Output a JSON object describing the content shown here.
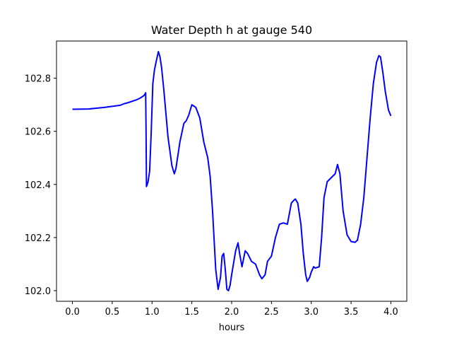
{
  "chart_data": {
    "type": "line",
    "title": "Water Depth h at gauge 540",
    "xlabel": "hours",
    "ylabel": "",
    "xlim": [
      -0.2,
      4.2
    ],
    "ylim": [
      101.96,
      102.94
    ],
    "grid": false,
    "legend": "none",
    "x_ticks": [
      0.0,
      0.5,
      1.0,
      1.5,
      2.0,
      2.5,
      3.0,
      3.5,
      4.0
    ],
    "x_tick_labels": [
      "0.0",
      "0.5",
      "1.0",
      "1.5",
      "2.0",
      "2.5",
      "3.0",
      "3.5",
      "4.0"
    ],
    "y_ticks": [
      102.0,
      102.2,
      102.4,
      102.6,
      102.8
    ],
    "y_tick_labels": [
      "102.0",
      "102.2",
      "102.4",
      "102.6",
      "102.8"
    ],
    "series": [
      {
        "color": "#0000ff",
        "points": [
          [
            0.0,
            102.683
          ],
          [
            0.2,
            102.684
          ],
          [
            0.4,
            102.69
          ],
          [
            0.6,
            102.698
          ],
          [
            0.65,
            102.704
          ],
          [
            0.7,
            102.708
          ],
          [
            0.8,
            102.718
          ],
          [
            0.85,
            102.725
          ],
          [
            0.9,
            102.735
          ],
          [
            0.92,
            102.745
          ],
          [
            0.925,
            102.6
          ],
          [
            0.93,
            102.392
          ],
          [
            0.95,
            102.41
          ],
          [
            0.97,
            102.45
          ],
          [
            0.99,
            102.6
          ],
          [
            1.01,
            102.78
          ],
          [
            1.03,
            102.83
          ],
          [
            1.05,
            102.86
          ],
          [
            1.08,
            102.9
          ],
          [
            1.1,
            102.88
          ],
          [
            1.12,
            102.84
          ],
          [
            1.15,
            102.75
          ],
          [
            1.2,
            102.58
          ],
          [
            1.25,
            102.47
          ],
          [
            1.28,
            102.44
          ],
          [
            1.3,
            102.46
          ],
          [
            1.35,
            102.56
          ],
          [
            1.4,
            102.63
          ],
          [
            1.43,
            102.64
          ],
          [
            1.46,
            102.66
          ],
          [
            1.5,
            102.7
          ],
          [
            1.55,
            102.69
          ],
          [
            1.6,
            102.65
          ],
          [
            1.65,
            102.56
          ],
          [
            1.7,
            102.5
          ],
          [
            1.73,
            102.43
          ],
          [
            1.76,
            102.3
          ],
          [
            1.8,
            102.08
          ],
          [
            1.83,
            102.005
          ],
          [
            1.86,
            102.05
          ],
          [
            1.88,
            102.13
          ],
          [
            1.9,
            102.14
          ],
          [
            1.92,
            102.08
          ],
          [
            1.94,
            102.005
          ],
          [
            1.96,
            102.0
          ],
          [
            1.98,
            102.02
          ],
          [
            2.0,
            102.06
          ],
          [
            2.05,
            102.15
          ],
          [
            2.08,
            102.18
          ],
          [
            2.1,
            102.14
          ],
          [
            2.13,
            102.09
          ],
          [
            2.17,
            102.15
          ],
          [
            2.2,
            102.14
          ],
          [
            2.25,
            102.11
          ],
          [
            2.3,
            102.1
          ],
          [
            2.35,
            102.06
          ],
          [
            2.38,
            102.045
          ],
          [
            2.42,
            102.06
          ],
          [
            2.45,
            102.11
          ],
          [
            2.5,
            102.13
          ],
          [
            2.55,
            102.2
          ],
          [
            2.6,
            102.25
          ],
          [
            2.65,
            102.255
          ],
          [
            2.7,
            102.25
          ],
          [
            2.75,
            102.33
          ],
          [
            2.78,
            102.34
          ],
          [
            2.8,
            102.345
          ],
          [
            2.83,
            102.33
          ],
          [
            2.87,
            102.25
          ],
          [
            2.9,
            102.14
          ],
          [
            2.93,
            102.06
          ],
          [
            2.95,
            102.035
          ],
          [
            2.98,
            102.05
          ],
          [
            3.0,
            102.07
          ],
          [
            3.03,
            102.09
          ],
          [
            3.05,
            102.085
          ],
          [
            3.1,
            102.09
          ],
          [
            3.13,
            102.2
          ],
          [
            3.16,
            102.35
          ],
          [
            3.2,
            102.41
          ],
          [
            3.25,
            102.425
          ],
          [
            3.3,
            102.44
          ],
          [
            3.33,
            102.475
          ],
          [
            3.36,
            102.44
          ],
          [
            3.4,
            102.3
          ],
          [
            3.45,
            102.21
          ],
          [
            3.5,
            102.185
          ],
          [
            3.55,
            102.182
          ],
          [
            3.58,
            102.19
          ],
          [
            3.62,
            102.25
          ],
          [
            3.66,
            102.35
          ],
          [
            3.7,
            102.5
          ],
          [
            3.74,
            102.65
          ],
          [
            3.78,
            102.78
          ],
          [
            3.82,
            102.86
          ],
          [
            3.85,
            102.885
          ],
          [
            3.87,
            102.88
          ],
          [
            3.9,
            102.82
          ],
          [
            3.93,
            102.75
          ],
          [
            3.97,
            102.68
          ],
          [
            4.0,
            102.658
          ]
        ]
      }
    ]
  }
}
